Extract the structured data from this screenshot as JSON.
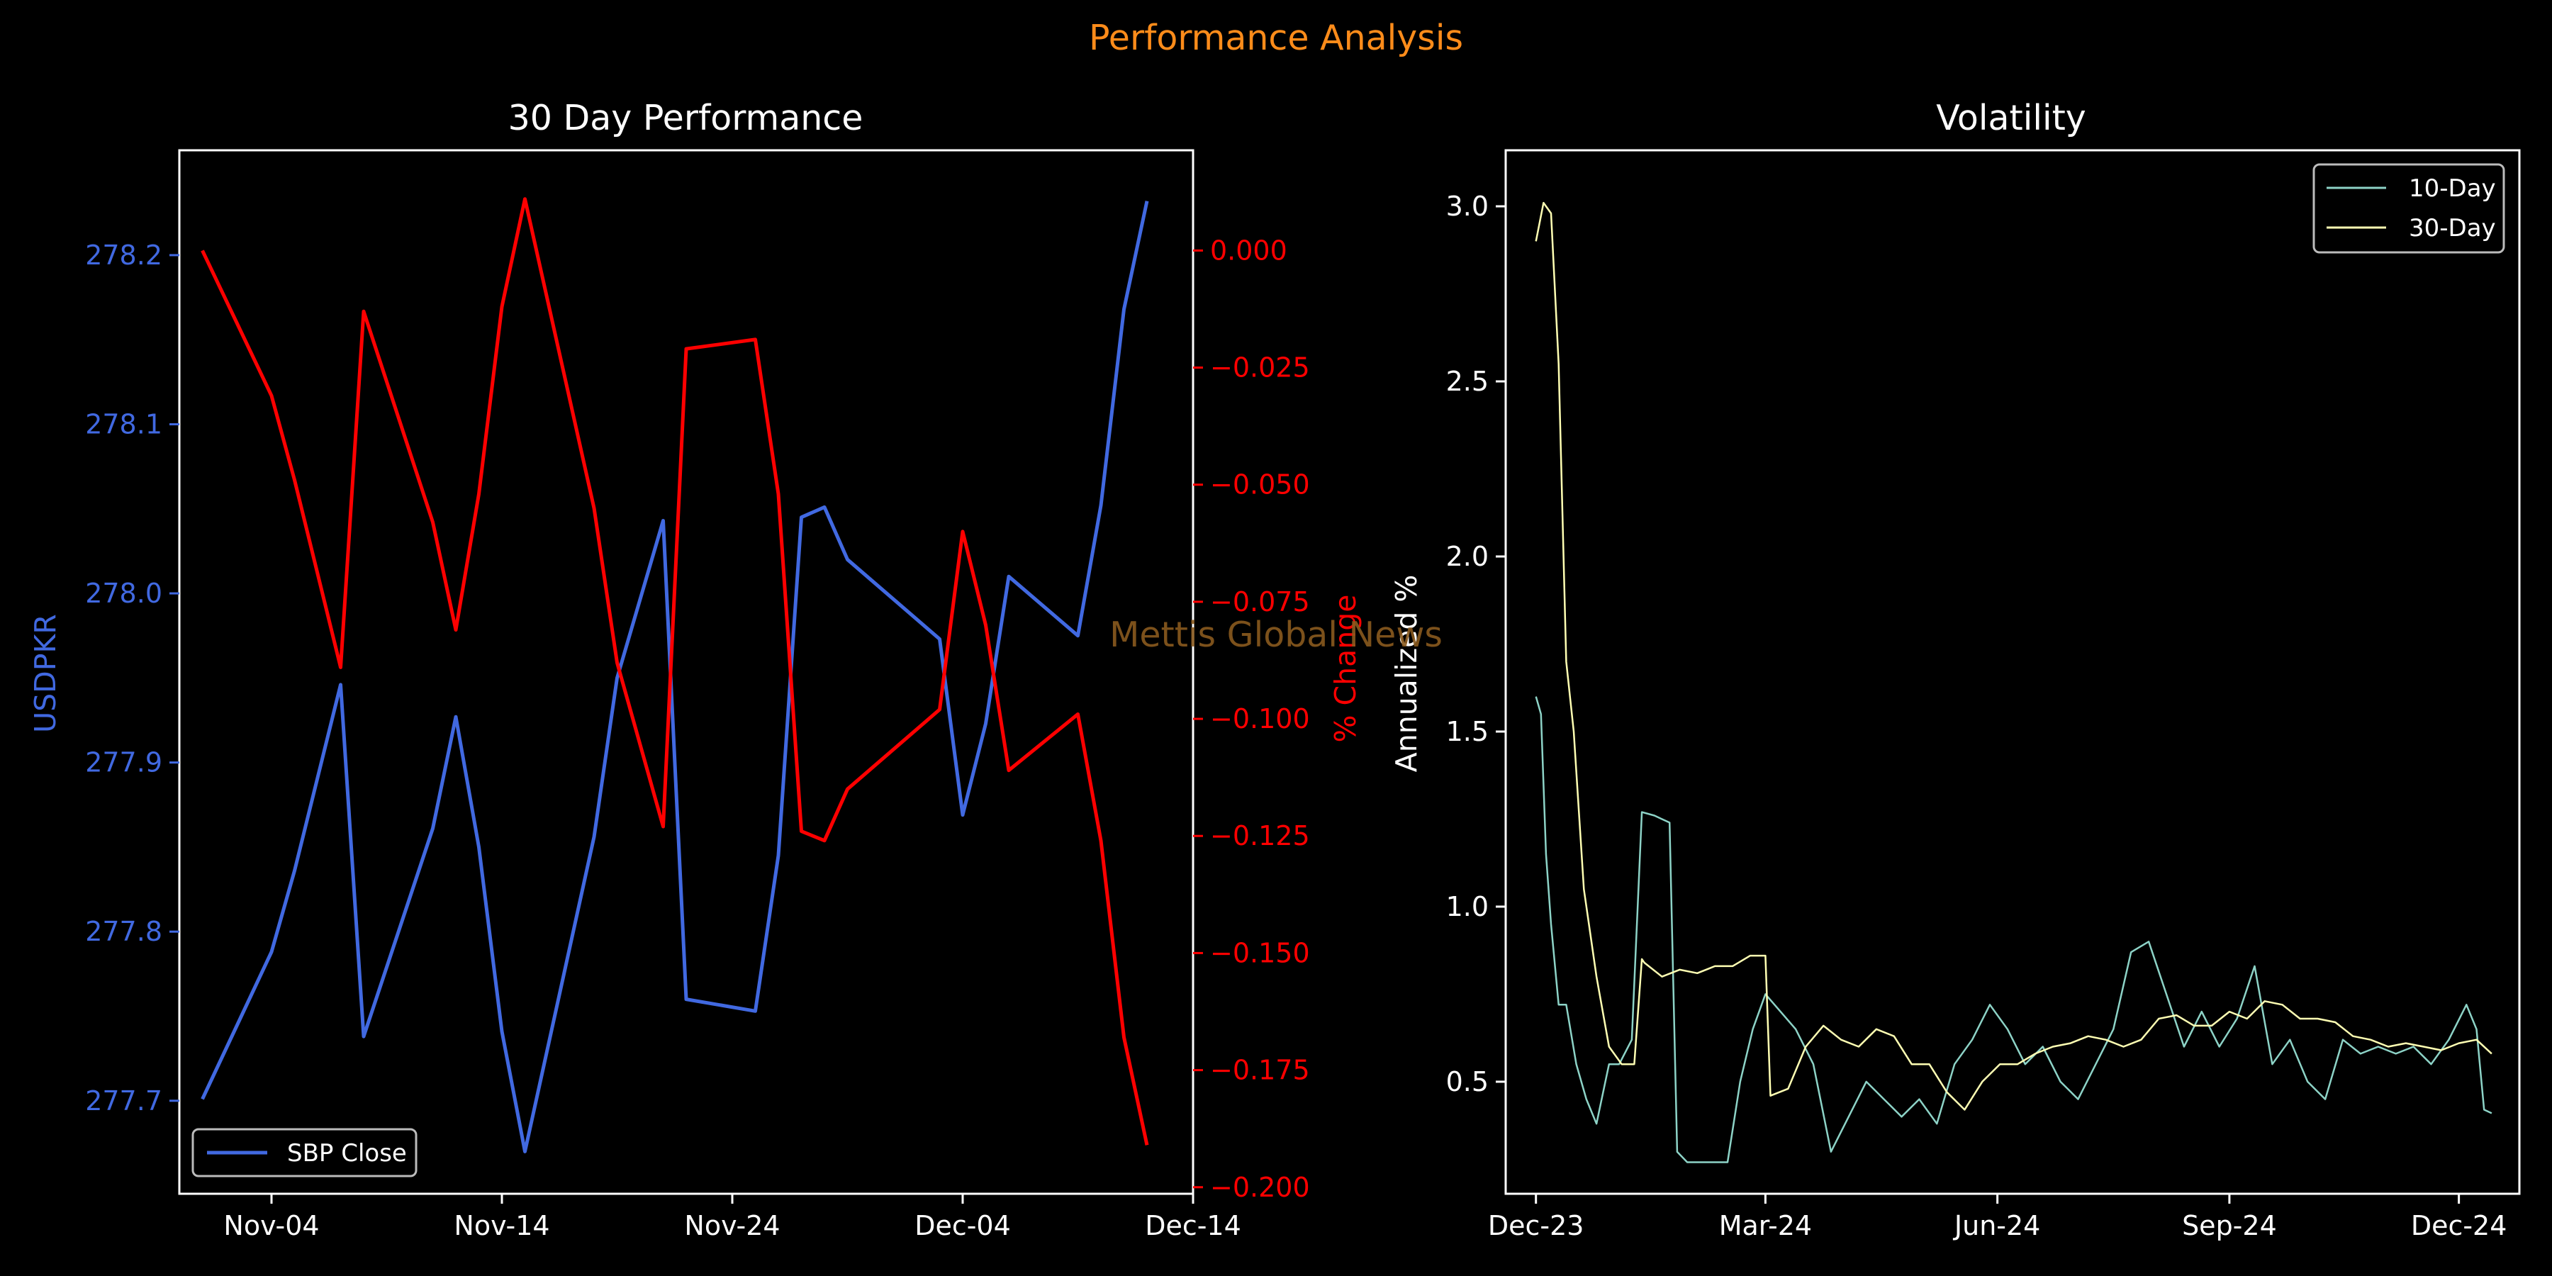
{
  "figure": {
    "suptitle": "Performance Analysis",
    "watermark": "Mettis Global News",
    "background": "#000000",
    "suptitle_color": "#ff8c1a",
    "watermark_color": "#8a5a1f"
  },
  "chart_data": [
    {
      "type": "line",
      "title": "30 Day Performance",
      "xlabel": "",
      "ylabel": "USDPKR",
      "ylabel_right": "% Change",
      "x_ticks": [
        "Nov-04",
        "Nov-14",
        "Nov-24",
        "Dec-04",
        "Dec-14"
      ],
      "x_range": [
        "2024-10-31",
        "2024-12-14"
      ],
      "ylim": [
        277.645,
        278.262
      ],
      "y_ticks": [
        "277.7",
        "277.8",
        "277.9",
        "278.0",
        "278.1",
        "278.2"
      ],
      "ylim_right": [
        -0.2014,
        0.0214
      ],
      "y_ticks_right": [
        "0.000",
        "−0.025",
        "−0.050",
        "−0.075",
        "−0.100",
        "−0.125",
        "−0.150",
        "−0.175",
        "−0.200"
      ],
      "legend": {
        "position": "lower-left",
        "entries": [
          "SBP Close"
        ]
      },
      "grid": false,
      "series": [
        {
          "name": "SBP Close",
          "axis": "left",
          "color": "#4169e1",
          "x": [
            "2024-11-01",
            "2024-11-04",
            "2024-11-05",
            "2024-11-07",
            "2024-11-08",
            "2024-11-11",
            "2024-11-12",
            "2024-11-13",
            "2024-11-14",
            "2024-11-15",
            "2024-11-18",
            "2024-11-19",
            "2024-11-21",
            "2024-11-22",
            "2024-11-25",
            "2024-11-26",
            "2024-11-27",
            "2024-11-28",
            "2024-11-29",
            "2024-12-03",
            "2024-12-04",
            "2024-12-05",
            "2024-12-06",
            "2024-12-09",
            "2024-12-10",
            "2024-12-11",
            "2024-12-12"
          ],
          "y": [
            277.701,
            277.788,
            277.836,
            277.946,
            277.738,
            277.861,
            277.927,
            277.85,
            277.741,
            277.67,
            277.856,
            277.95,
            278.043,
            277.76,
            277.753,
            277.845,
            278.045,
            278.051,
            278.02,
            277.973,
            277.869,
            277.923,
            278.01,
            277.975,
            278.052,
            278.168,
            278.232
          ]
        },
        {
          "name": "% Change",
          "axis": "right",
          "color": "#ff0000",
          "x": [
            "2024-11-01",
            "2024-11-04",
            "2024-11-05",
            "2024-11-07",
            "2024-11-08",
            "2024-11-11",
            "2024-11-12",
            "2024-11-13",
            "2024-11-14",
            "2024-11-15",
            "2024-11-18",
            "2024-11-19",
            "2024-11-21",
            "2024-11-22",
            "2024-11-25",
            "2024-11-26",
            "2024-11-27",
            "2024-11-28",
            "2024-11-29",
            "2024-12-03",
            "2024-12-04",
            "2024-12-05",
            "2024-12-06",
            "2024-12-09",
            "2024-12-10",
            "2024-12-11",
            "2024-12-12"
          ],
          "y": [
            0.0,
            -0.031,
            -0.049,
            -0.089,
            -0.013,
            -0.058,
            -0.081,
            -0.052,
            -0.012,
            0.011,
            -0.055,
            -0.088,
            -0.123,
            -0.021,
            -0.019,
            -0.052,
            -0.124,
            -0.126,
            -0.115,
            -0.098,
            -0.06,
            -0.08,
            -0.111,
            -0.099,
            -0.126,
            -0.168,
            -0.191
          ]
        }
      ]
    },
    {
      "type": "line",
      "title": "Volatility",
      "xlabel": "",
      "ylabel": "Annualized %",
      "x_ticks": [
        "Dec-23",
        "Mar-24",
        "Jun-24",
        "Sep-24",
        "Dec-24"
      ],
      "x_range": [
        "2023-11-19",
        "2024-12-25"
      ],
      "ylim": [
        0.18,
        3.16
      ],
      "y_ticks": [
        "0.5",
        "1.0",
        "1.5",
        "2.0",
        "2.5",
        "3.0"
      ],
      "legend": {
        "position": "top-right",
        "entries": [
          "10-Day",
          "30-Day"
        ]
      },
      "grid": false,
      "series": [
        {
          "name": "10-Day",
          "color": "#8dd3c7",
          "x": [
            "2023-12-01",
            "2023-12-03",
            "2023-12-05",
            "2023-12-07",
            "2023-12-10",
            "2023-12-13",
            "2023-12-17",
            "2023-12-21",
            "2023-12-25",
            "2023-12-30",
            "2024-01-03",
            "2024-01-08",
            "2024-01-12",
            "2024-01-17",
            "2024-01-20",
            "2024-01-23",
            "2024-01-26",
            "2024-01-30",
            "2024-02-05",
            "2024-02-10",
            "2024-02-15",
            "2024-02-20",
            "2024-02-25",
            "2024-03-01",
            "2024-03-07",
            "2024-03-13",
            "2024-03-20",
            "2024-03-27",
            "2024-04-03",
            "2024-04-10",
            "2024-04-17",
            "2024-04-24",
            "2024-05-01",
            "2024-05-08",
            "2024-05-15",
            "2024-05-22",
            "2024-05-29",
            "2024-06-05",
            "2024-06-12",
            "2024-06-19",
            "2024-06-26",
            "2024-07-03",
            "2024-07-10",
            "2024-07-17",
            "2024-07-24",
            "2024-07-31",
            "2024-08-07",
            "2024-08-14",
            "2024-08-21",
            "2024-08-28",
            "2024-09-04",
            "2024-09-11",
            "2024-09-18",
            "2024-09-25",
            "2024-10-02",
            "2024-10-09",
            "2024-10-16",
            "2024-10-23",
            "2024-10-30",
            "2024-11-06",
            "2024-11-13",
            "2024-11-20",
            "2024-11-27",
            "2024-12-04",
            "2024-12-08",
            "2024-12-11",
            "2024-12-14"
          ],
          "y": [
            1.6,
            1.55,
            1.15,
            0.95,
            0.72,
            0.72,
            0.55,
            0.45,
            0.38,
            0.55,
            0.55,
            0.62,
            1.27,
            1.26,
            1.25,
            1.24,
            0.3,
            0.27,
            0.27,
            0.27,
            0.27,
            0.5,
            0.65,
            0.75,
            0.7,
            0.65,
            0.55,
            0.3,
            0.4,
            0.5,
            0.45,
            0.4,
            0.45,
            0.38,
            0.55,
            0.62,
            0.72,
            0.65,
            0.55,
            0.6,
            0.5,
            0.45,
            0.55,
            0.65,
            0.87,
            0.9,
            0.75,
            0.6,
            0.7,
            0.6,
            0.68,
            0.83,
            0.55,
            0.62,
            0.5,
            0.45,
            0.62,
            0.58,
            0.6,
            0.58,
            0.6,
            0.55,
            0.62,
            0.72,
            0.65,
            0.42,
            0.41
          ]
        },
        {
          "name": "30-Day",
          "color": "#ffffb3",
          "x": [
            "2023-12-01",
            "2023-12-04",
            "2023-12-07",
            "2023-12-10",
            "2023-12-13",
            "2023-12-16",
            "2023-12-20",
            "2023-12-25",
            "2023-12-30",
            "2024-01-04",
            "2024-01-09",
            "2024-01-12",
            "2024-01-13",
            "2024-01-20",
            "2024-01-27",
            "2024-02-03",
            "2024-02-10",
            "2024-02-17",
            "2024-02-24",
            "2024-03-01",
            "2024-03-03",
            "2024-03-10",
            "2024-03-17",
            "2024-03-24",
            "2024-03-31",
            "2024-04-07",
            "2024-04-14",
            "2024-04-21",
            "2024-04-28",
            "2024-05-05",
            "2024-05-12",
            "2024-05-19",
            "2024-05-26",
            "2024-06-02",
            "2024-06-09",
            "2024-06-16",
            "2024-06-23",
            "2024-06-30",
            "2024-07-07",
            "2024-07-14",
            "2024-07-21",
            "2024-07-28",
            "2024-08-04",
            "2024-08-11",
            "2024-08-18",
            "2024-08-25",
            "2024-09-01",
            "2024-09-08",
            "2024-09-15",
            "2024-09-22",
            "2024-09-29",
            "2024-10-06",
            "2024-10-13",
            "2024-10-20",
            "2024-10-27",
            "2024-11-03",
            "2024-11-10",
            "2024-11-17",
            "2024-11-24",
            "2024-12-01",
            "2024-12-08",
            "2024-12-14"
          ],
          "y": [
            2.9,
            3.01,
            2.98,
            2.55,
            1.7,
            1.5,
            1.05,
            0.8,
            0.6,
            0.55,
            0.55,
            0.85,
            0.84,
            0.8,
            0.82,
            0.81,
            0.83,
            0.83,
            0.86,
            0.86,
            0.46,
            0.48,
            0.6,
            0.66,
            0.62,
            0.6,
            0.65,
            0.63,
            0.55,
            0.55,
            0.47,
            0.42,
            0.5,
            0.55,
            0.55,
            0.58,
            0.6,
            0.61,
            0.63,
            0.62,
            0.6,
            0.62,
            0.68,
            0.69,
            0.66,
            0.66,
            0.7,
            0.68,
            0.73,
            0.72,
            0.68,
            0.68,
            0.67,
            0.63,
            0.62,
            0.6,
            0.61,
            0.6,
            0.59,
            0.61,
            0.62,
            0.58
          ]
        }
      ]
    }
  ]
}
